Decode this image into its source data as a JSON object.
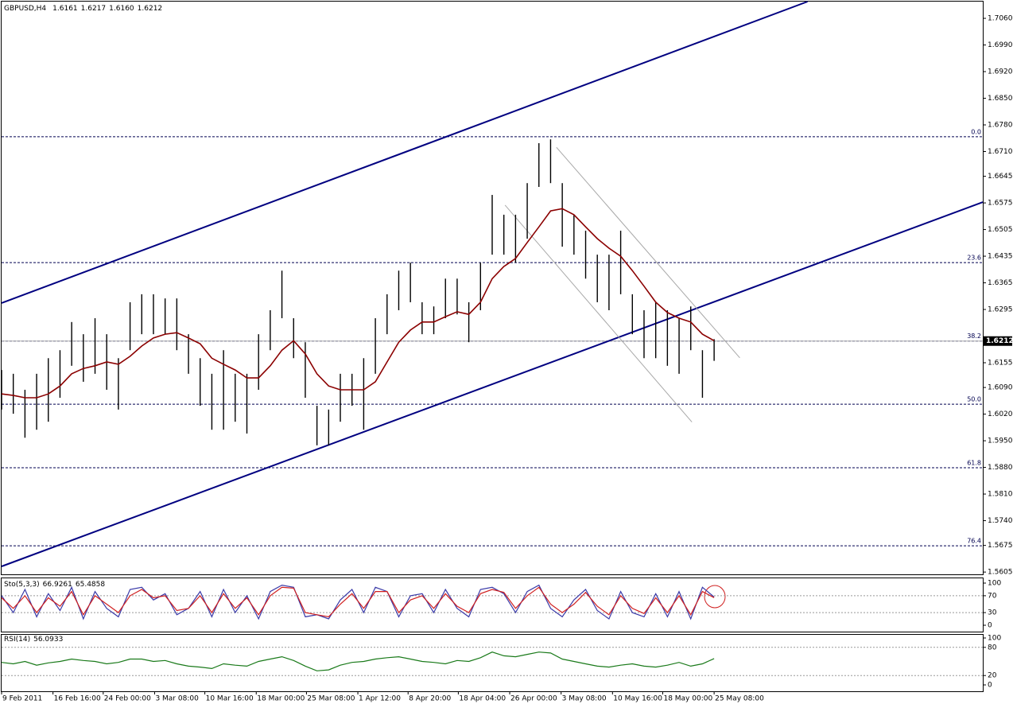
{
  "chart_data": [
    {
      "type": "hilo",
      "title": "GBPUSD,H4",
      "header_values": [
        {
          "value": 1.6161,
          "label": "1.6161"
        },
        {
          "value": 1.6217,
          "label": "1.6217"
        },
        {
          "value": 1.616,
          "label": "1.6160"
        },
        {
          "value": 1.6212,
          "label": "1.6212"
        }
      ],
      "color": "#000000",
      "x": [
        0,
        10,
        20,
        30,
        40,
        50,
        60,
        70,
        80,
        90,
        100,
        110,
        120,
        130,
        140,
        150,
        160,
        170,
        180,
        190,
        200,
        210,
        220,
        230,
        240,
        250,
        260,
        270,
        280,
        290,
        300,
        310,
        320,
        330,
        340,
        350,
        360,
        370,
        380,
        390,
        400,
        410,
        420,
        430,
        440,
        450,
        460,
        470,
        480,
        490,
        500,
        510,
        520,
        530,
        540,
        550,
        560,
        570,
        580,
        590,
        600,
        610
      ],
      "high": [
        1.6136,
        1.6126,
        1.6084,
        1.6126,
        1.6167,
        1.6188,
        1.6262,
        1.623,
        1.6272,
        1.623,
        1.6167,
        1.6314,
        1.6335,
        1.6335,
        1.6324,
        1.6324,
        1.623,
        1.6167,
        1.6126,
        1.6188,
        1.6126,
        1.6126,
        1.623,
        1.6293,
        1.6397,
        1.6272,
        1.6209,
        1.6042,
        1.6032,
        1.6126,
        1.6126,
        1.6167,
        1.6272,
        1.6335,
        1.6397,
        1.6418,
        1.6314,
        1.6303,
        1.6376,
        1.6376,
        1.6314,
        1.6418,
        1.6596,
        1.6544,
        1.6544,
        1.6627,
        1.6732,
        1.6742,
        1.6627,
        1.6544,
        1.6502,
        1.6439,
        1.6439,
        1.6502,
        1.6335,
        1.6293,
        1.6314,
        1.6293,
        1.6272,
        1.6303,
        1.6188,
        1.6217
      ],
      "low": [
        1.6032,
        1.6021,
        1.5958,
        1.5979,
        1.6,
        1.6063,
        1.6147,
        1.6105,
        1.6126,
        1.6084,
        1.6032,
        1.6188,
        1.623,
        1.623,
        1.623,
        1.6188,
        1.6126,
        1.6042,
        1.5979,
        1.5979,
        1.6,
        1.5969,
        1.6084,
        1.6188,
        1.6272,
        1.6167,
        1.6063,
        1.5938,
        1.5938,
        1.6,
        1.6042,
        1.5979,
        1.6126,
        1.623,
        1.6293,
        1.6314,
        1.623,
        1.623,
        1.6272,
        1.6282,
        1.6209,
        1.6293,
        1.6439,
        1.6439,
        1.6418,
        1.6481,
        1.6617,
        1.6627,
        1.646,
        1.6439,
        1.6376,
        1.6314,
        1.6293,
        1.6335,
        1.623,
        1.6167,
        1.6167,
        1.6147,
        1.6126,
        1.6188,
        1.6063,
        1.616
      ],
      "ma": {
        "color": "#8b0000",
        "values": [
          1.6073,
          1.6069,
          1.6063,
          1.6063,
          1.6073,
          1.6094,
          1.6126,
          1.614,
          1.6147,
          1.6157,
          1.6151,
          1.6172,
          1.6199,
          1.622,
          1.623,
          1.6234,
          1.622,
          1.6205,
          1.6167,
          1.6151,
          1.6136,
          1.6115,
          1.6115,
          1.6147,
          1.6188,
          1.6213,
          1.6178,
          1.6126,
          1.6094,
          1.6084,
          1.6084,
          1.6084,
          1.6105,
          1.6157,
          1.6209,
          1.6241,
          1.6262,
          1.6262,
          1.6276,
          1.6289,
          1.6282,
          1.6314,
          1.6376,
          1.6408,
          1.6429,
          1.6471,
          1.6512,
          1.6554,
          1.656,
          1.6544,
          1.6512,
          1.6481,
          1.6456,
          1.6435,
          1.6397,
          1.6356,
          1.6314,
          1.6287,
          1.6272,
          1.6262,
          1.623,
          1.6213
        ]
      },
      "channels": [
        {
          "color": "#000080",
          "width": 2,
          "x": [
            0,
            690
          ],
          "values": [
            1.6312,
            1.7104
          ]
        },
        {
          "color": "#000080",
          "width": 2,
          "x": [
            0,
            840
          ],
          "values": [
            1.562,
            1.6577
          ]
        },
        {
          "color": "#a8a8a8",
          "width": 1,
          "x": [
            431,
            591
          ],
          "values": [
            1.6569,
            1.5999
          ]
        },
        {
          "color": "#a8a8a8",
          "width": 1,
          "x": [
            475,
            632
          ],
          "values": [
            1.6721,
            1.6168
          ]
        }
      ],
      "fib_levels": [
        {
          "value": 0,
          "label": "0.0"
        },
        23.6,
        38.2,
        {
          "value": 50,
          "label": "50.0"
        },
        61.8,
        76.4
      ],
      "fib_prices": [
        1.6749,
        1.6418,
        1.6212,
        1.6046,
        1.5879,
        1.5674
      ],
      "last_price": {
        "value": 1.6212,
        "label": "1.6212"
      },
      "xlim": [
        0,
        840
      ],
      "ylim": [
        1.5599,
        1.7104
      ],
      "yticks": [
        {
          "value": 1.706,
          "label": "1.7060"
        },
        {
          "value": 1.699,
          "label": "1.6990"
        },
        {
          "value": 1.692,
          "label": "1.6920"
        },
        {
          "value": 1.685,
          "label": "1.6850"
        },
        {
          "value": 1.678,
          "label": "1.6780"
        },
        {
          "value": 1.671,
          "label": "1.6710"
        },
        {
          "value": 1.6645,
          "label": "1.6645"
        },
        {
          "value": 1.6575,
          "label": "1.6575"
        },
        {
          "value": 1.6505,
          "label": "1.6505"
        },
        {
          "value": 1.6435,
          "label": "1.6435"
        },
        {
          "value": 1.6365,
          "label": "1.6365"
        },
        {
          "value": 1.6295,
          "label": "1.6295"
        },
        {
          "value": 1.6155,
          "label": "1.6155"
        },
        {
          "value": 1.609,
          "label": "1.6090"
        },
        {
          "value": 1.602,
          "label": "1.6020"
        },
        {
          "value": 1.595,
          "label": "1.5950"
        },
        {
          "value": 1.588,
          "label": "1.5880"
        },
        {
          "value": 1.581,
          "label": "1.5810"
        },
        {
          "value": 1.574,
          "label": "1.5740"
        },
        {
          "value": 1.5675,
          "label": "1.5675"
        },
        {
          "value": 1.5605,
          "label": "1.5605"
        }
      ],
      "xticks": [
        {
          "value": 0,
          "label": "9 Feb 2011"
        },
        {
          "value": 44,
          "label": "16 Feb 16:00"
        },
        {
          "value": 87,
          "label": "24 Feb 00:00"
        },
        {
          "value": 131,
          "label": "3 Mar 08:00"
        },
        {
          "value": 174,
          "label": "10 Mar 16:00"
        },
        {
          "value": 218,
          "label": "18 Mar 00:00"
        },
        {
          "value": 261,
          "label": "25 Mar 08:00"
        },
        {
          "value": 305,
          "label": "1 Apr 12:00"
        },
        {
          "value": 348,
          "label": "8 Apr 20:00"
        },
        {
          "value": 391,
          "label": "18 Apr 04:00"
        },
        {
          "value": 435,
          "label": "26 Apr 00:00"
        },
        {
          "value": 479,
          "label": "3 May 08:00"
        },
        {
          "value": 523,
          "label": "10 May 16:00"
        },
        {
          "value": 566,
          "label": "18 May 00:00"
        },
        {
          "value": 610,
          "label": "25 May 08:00"
        }
      ]
    },
    {
      "type": "line",
      "title": "Sto(5,3,3)",
      "x": [
        0,
        10,
        20,
        30,
        40,
        50,
        60,
        70,
        80,
        90,
        100,
        110,
        120,
        130,
        140,
        150,
        160,
        170,
        180,
        190,
        200,
        210,
        220,
        230,
        240,
        250,
        260,
        270,
        280,
        290,
        300,
        310,
        320,
        330,
        340,
        350,
        360,
        370,
        380,
        390,
        400,
        410,
        420,
        430,
        440,
        450,
        460,
        470,
        480,
        490,
        500,
        510,
        520,
        530,
        540,
        550,
        560,
        570,
        580,
        590,
        600,
        610
      ],
      "series": [
        {
          "color": "#3a3aa8",
          "values": [
            70,
            30,
            85,
            20,
            75,
            35,
            90,
            15,
            80,
            40,
            20,
            85,
            90,
            60,
            75,
            25,
            40,
            80,
            20,
            85,
            30,
            70,
            15,
            80,
            95,
            90,
            20,
            25,
            15,
            60,
            85,
            30,
            90,
            80,
            20,
            70,
            75,
            30,
            85,
            40,
            20,
            85,
            90,
            75,
            30,
            80,
            95,
            40,
            20,
            60,
            85,
            35,
            15,
            80,
            30,
            20,
            75,
            20,
            80,
            15,
            90,
            66.9261
          ]
        },
        {
          "color": "#d02020",
          "values": [
            65,
            40,
            70,
            30,
            65,
            45,
            80,
            25,
            70,
            50,
            30,
            70,
            85,
            65,
            70,
            35,
            40,
            70,
            30,
            75,
            40,
            65,
            25,
            70,
            90,
            88,
            30,
            25,
            20,
            50,
            75,
            40,
            80,
            80,
            30,
            60,
            70,
            40,
            75,
            45,
            30,
            75,
            85,
            78,
            40,
            70,
            90,
            50,
            30,
            50,
            78,
            45,
            25,
            70,
            40,
            28,
            65,
            30,
            70,
            25,
            80,
            65.4858
          ]
        }
      ],
      "xlim": [
        0,
        840
      ],
      "ylim": [
        0,
        100
      ],
      "yticks": [
        100,
        70,
        30,
        0
      ]
    },
    {
      "type": "line",
      "title": "RSI(14)",
      "x": [
        0,
        10,
        20,
        30,
        40,
        50,
        60,
        70,
        80,
        90,
        100,
        110,
        120,
        130,
        140,
        150,
        160,
        170,
        180,
        190,
        200,
        210,
        220,
        230,
        240,
        250,
        260,
        270,
        280,
        290,
        300,
        310,
        320,
        330,
        340,
        350,
        360,
        370,
        380,
        390,
        400,
        410,
        420,
        430,
        440,
        450,
        460,
        470,
        480,
        490,
        500,
        510,
        520,
        530,
        540,
        550,
        560,
        570,
        580,
        590,
        600,
        610
      ],
      "series": [
        {
          "color": "#1a7a1a",
          "values": [
            48,
            45,
            50,
            42,
            47,
            50,
            55,
            52,
            50,
            45,
            48,
            55,
            55,
            50,
            52,
            45,
            40,
            38,
            35,
            45,
            42,
            40,
            50,
            55,
            60,
            52,
            40,
            30,
            32,
            42,
            48,
            50,
            55,
            58,
            60,
            55,
            50,
            48,
            45,
            52,
            50,
            58,
            70,
            62,
            60,
            65,
            70,
            68,
            55,
            50,
            45,
            40,
            38,
            42,
            45,
            40,
            38,
            42,
            48,
            40,
            45,
            56.0933
          ]
        }
      ],
      "xlim": [
        0,
        840
      ],
      "ylim": [
        0,
        100
      ],
      "yticks": [
        100,
        80,
        20,
        0
      ]
    }
  ]
}
